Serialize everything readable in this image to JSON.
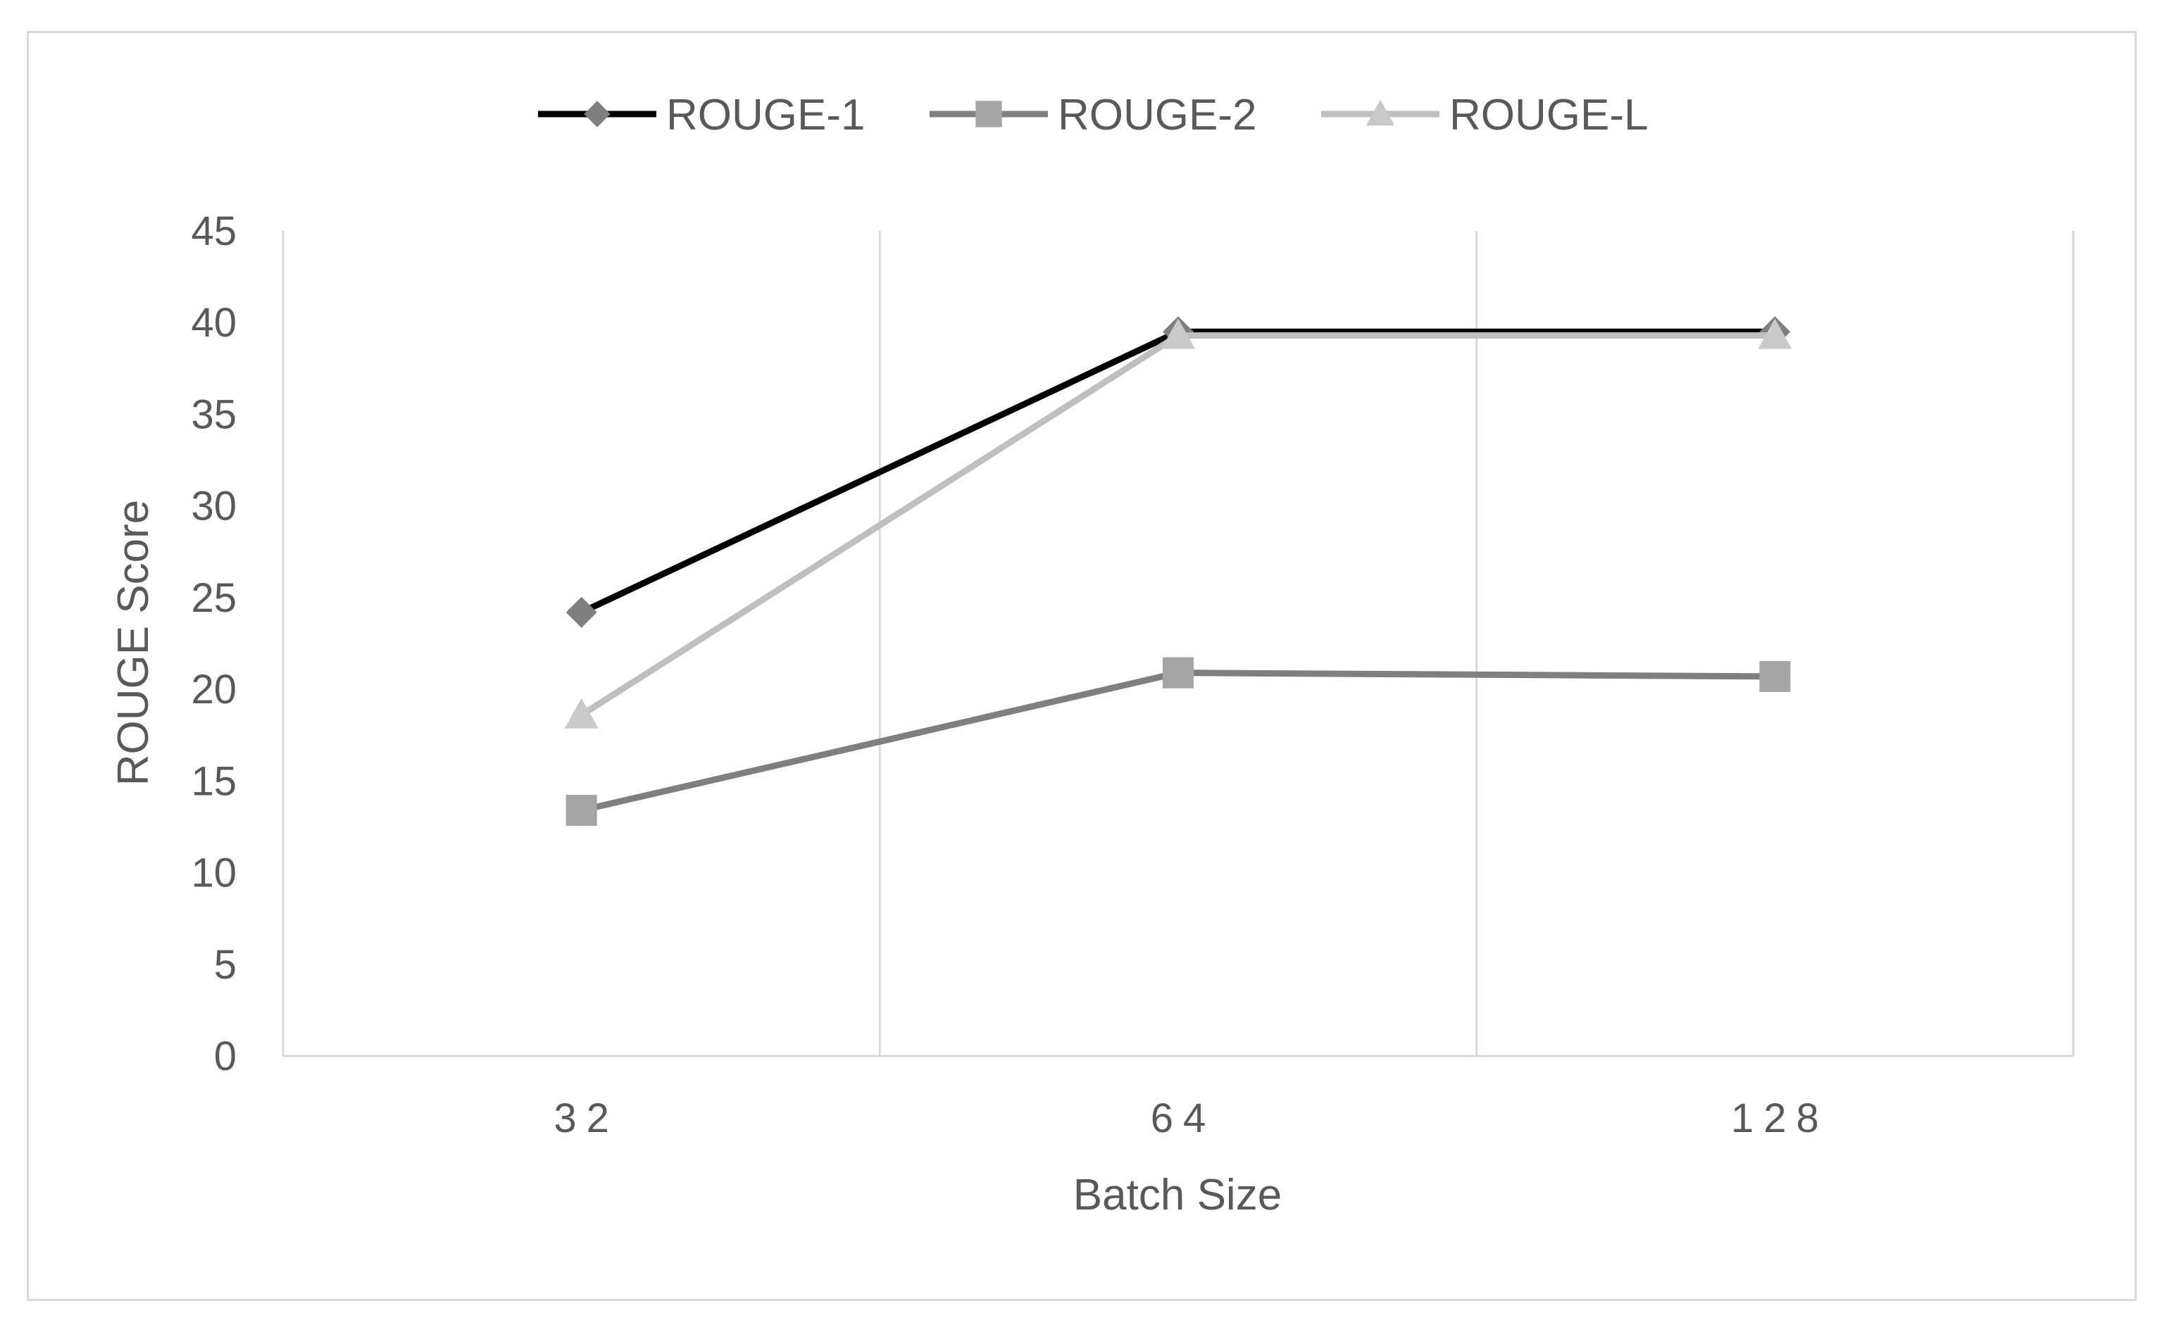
{
  "chart_data": {
    "type": "line",
    "categories": [
      "32",
      "64",
      "128"
    ],
    "series": [
      {
        "name": "ROUGE-1",
        "values": [
          24.2,
          39.5,
          39.5
        ],
        "color": "#000000",
        "marker": "diamond",
        "marker_color": "#7f7f7f"
      },
      {
        "name": "ROUGE-2",
        "values": [
          13.4,
          20.9,
          20.7
        ],
        "color": "#7f7f7f",
        "marker": "square",
        "marker_color": "#a5a5a5"
      },
      {
        "name": "ROUGE-L",
        "values": [
          18.6,
          39.3,
          39.3
        ],
        "color": "#bfbfbf",
        "marker": "triangle",
        "marker_color": "#c9c9c9"
      }
    ],
    "xlabel": "Batch Size",
    "ylabel": "ROUGE Score",
    "ylim": [
      0,
      45
    ],
    "yticks": [
      "0",
      "5",
      "10",
      "15",
      "20",
      "25",
      "30",
      "35",
      "40",
      "45"
    ],
    "grid": "vertical",
    "legend": "top"
  }
}
